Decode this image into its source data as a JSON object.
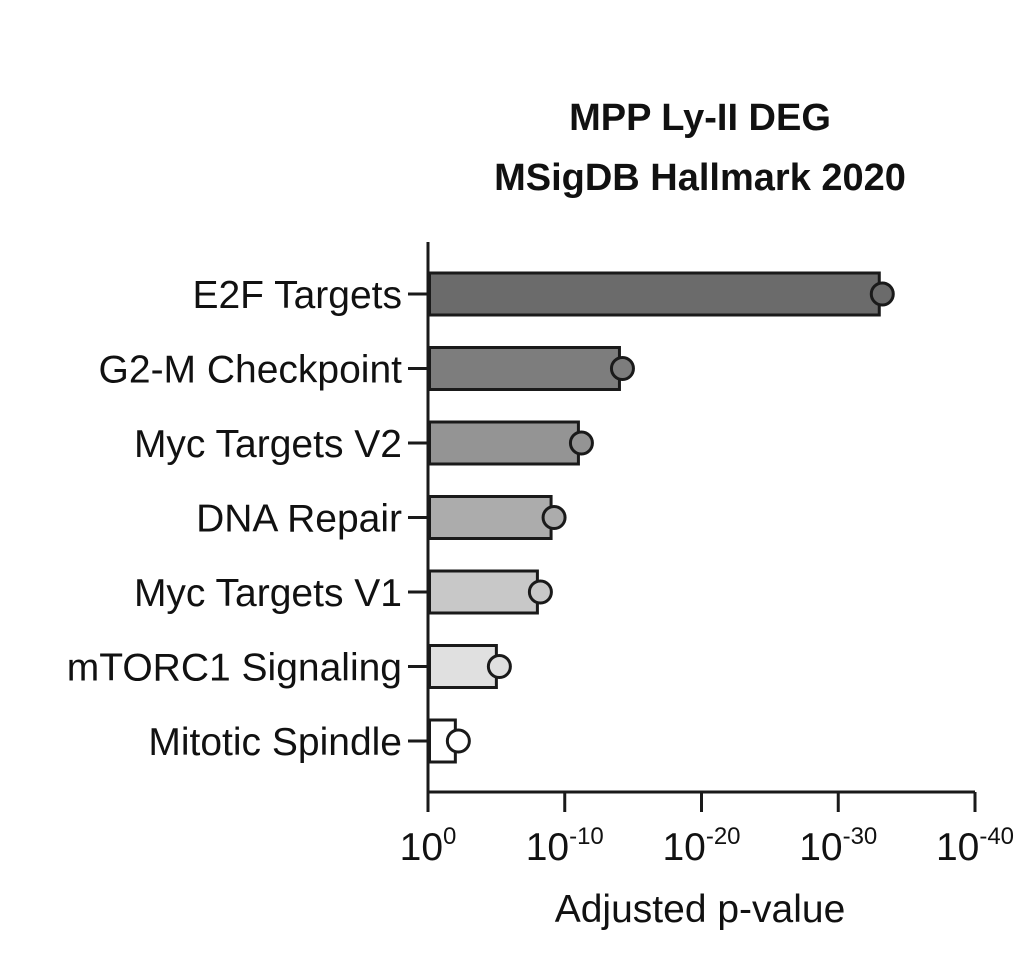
{
  "chart_data": {
    "type": "bar",
    "orientation": "horizontal",
    "title": [
      "MPP Ly-II DEG",
      "MSigDB Hallmark 2020"
    ],
    "xlabel": "Adjusted p-value",
    "ylabel": "",
    "x_scale": "log (reversed, -log10 p)",
    "xlim": [
      1,
      1e-40
    ],
    "x_ticks": [
      {
        "base": "10",
        "exp": "0"
      },
      {
        "base": "10",
        "exp": "-10"
      },
      {
        "base": "10",
        "exp": "-20"
      },
      {
        "base": "10",
        "exp": "-30"
      },
      {
        "base": "10",
        "exp": "-40"
      }
    ],
    "categories": [
      "E2F Targets",
      "G2-M Checkpoint",
      "Myc Targets V2",
      "DNA Repair",
      "Myc Targets V1",
      "mTORC1 Signaling",
      "Mitotic Spindle"
    ],
    "values": [
      1e-33,
      1e-14,
      1e-11,
      1e-09,
      1e-08,
      1e-05,
      0.01
    ],
    "bar_colors": [
      "#6b6b6b",
      "#7d7d7d",
      "#949494",
      "#acacac",
      "#c8c8c8",
      "#e0e0e0",
      "#ffffff"
    ],
    "marker": "circle",
    "grid": false,
    "legend": "none"
  }
}
